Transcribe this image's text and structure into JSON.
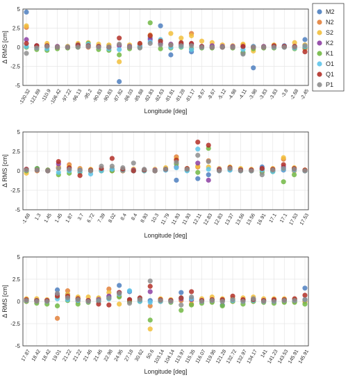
{
  "chart_data": [
    {
      "type": "scatter",
      "xlabel": "Longitude [deg]",
      "ylabel": "Δ RMS [cm]",
      "ylim": [
        -5,
        5
      ],
      "yticks": [
        -5,
        -2.5,
        0,
        2.5,
        5
      ],
      "grid": true,
      "categories": [
        "-130.32",
        "-121.89",
        "-110.9",
        "-106.42",
        "-97.22",
        "-96.13",
        "-95.2",
        "-90.83",
        "-90.83",
        "-87.82",
        "-86.03",
        "-85.88",
        "-82.83",
        "-82.63",
        "-81.81",
        "-81.28",
        "-81.17",
        "-8.67",
        "-8.67",
        "-5.12",
        "-4.98",
        "-4.11",
        "-3.98",
        "-3.83",
        "-3.83",
        "-3.8",
        "-2.68",
        "-2.45"
      ],
      "series": [
        {
          "name": "M2",
          "values": [
            4.6,
            0.2,
            0.2,
            0.0,
            0.1,
            0.1,
            0.2,
            0.1,
            0.2,
            -4.5,
            0.2,
            0.3,
            1.2,
            2.8,
            -1.0,
            0.5,
            -0.6,
            0.1,
            0.1,
            0.1,
            0.1,
            -0.8,
            -2.7,
            0.0,
            0.1,
            0.2,
            0.0,
            1.0
          ]
        },
        {
          "name": "N2",
          "values": [
            2.6,
            0.0,
            0.1,
            0.0,
            0.0,
            0.2,
            0.0,
            0.0,
            0.0,
            0.3,
            0.0,
            0.0,
            1.6,
            0.5,
            0.3,
            0.4,
            1.8,
            0.0,
            0.0,
            0.0,
            0.1,
            0.3,
            0.1,
            0.0,
            0.0,
            0.0,
            0.1,
            -0.2
          ]
        },
        {
          "name": "S2",
          "values": [
            2.8,
            0.2,
            0.5,
            0.1,
            0.1,
            0.5,
            0.6,
            0.4,
            0.3,
            -1.9,
            0.3,
            0.4,
            1.5,
            0.9,
            1.8,
            1.2,
            1.5,
            0.8,
            0.6,
            0.3,
            0.2,
            0.4,
            -0.5,
            0.1,
            0.3,
            0.1,
            0.6,
            0.3
          ]
        },
        {
          "name": "K2",
          "values": [
            1.0,
            0.2,
            0.1,
            0.1,
            0.0,
            0.2,
            0.1,
            0.1,
            0.0,
            0.2,
            0.1,
            0.1,
            1.0,
            0.5,
            0.4,
            0.3,
            0.4,
            0.1,
            0.2,
            0.1,
            0.1,
            0.1,
            0.1,
            0.1,
            0.1,
            0.1,
            0.1,
            0.0
          ]
        },
        {
          "name": "K1",
          "values": [
            0.0,
            -0.3,
            -0.4,
            -0.2,
            -0.1,
            0.0,
            0.5,
            -0.3,
            -0.4,
            -1.0,
            -0.2,
            0.0,
            3.2,
            -0.2,
            -0.1,
            0.0,
            -0.2,
            -0.1,
            -0.1,
            0.0,
            -0.1,
            -0.7,
            -0.2,
            -0.1,
            -0.1,
            0.0,
            -0.2,
            0.0
          ]
        },
        {
          "name": "O1",
          "values": [
            0.1,
            -0.1,
            -0.2,
            0.0,
            0.0,
            0.3,
            0.4,
            0.0,
            -0.2,
            -0.3,
            0.0,
            0.1,
            0.7,
            1.0,
            0.0,
            0.1,
            -0.3,
            0.0,
            0.0,
            0.0,
            0.0,
            -0.3,
            0.1,
            0.0,
            0.0,
            0.0,
            -0.1,
            0.1
          ]
        },
        {
          "name": "Q1",
          "values": [
            0.5,
            0.2,
            0.2,
            0.0,
            0.0,
            0.3,
            0.2,
            0.1,
            0.0,
            1.2,
            0.0,
            0.5,
            1.5,
            0.8,
            0.3,
            0.6,
            0.5,
            0.1,
            0.0,
            0.0,
            0.0,
            0.1,
            0.0,
            0.0,
            0.2,
            0.1,
            0.1,
            -0.6
          ]
        },
        {
          "name": "P1",
          "values": [
            -0.8,
            -0.1,
            0.1,
            0.0,
            0.0,
            0.0,
            0.1,
            0.0,
            0.0,
            0.4,
            0.0,
            -0.1,
            0.5,
            0.3,
            0.3,
            0.2,
            0.2,
            0.0,
            0.0,
            0.0,
            0.0,
            -0.9,
            0.0,
            0.0,
            0.0,
            0.0,
            0.0,
            0.2
          ]
        }
      ]
    },
    {
      "type": "scatter",
      "xlabel": "Longitude [deg]",
      "ylabel": "Δ RMS [cm]",
      "ylim": [
        -5,
        5
      ],
      "yticks": [
        -5,
        -2.5,
        0,
        2.5,
        5
      ],
      "grid": true,
      "categories": [
        "-1.68",
        "1.3",
        "1.45",
        "1.45",
        "1.87",
        "3.7",
        "6.72",
        "7.39",
        "8.02",
        "8.4",
        "8.4",
        "8.93",
        "10.3",
        "11.79",
        "11.93",
        "11.93",
        "12.11",
        "12.83",
        "12.83",
        "13.37",
        "13.56",
        "13.56",
        "16.91",
        "17.1",
        "17.1",
        "17.53",
        "17.53"
      ],
      "series": [
        {
          "name": "M2",
          "values": [
            0.0,
            0.3,
            0.0,
            0.4,
            0.1,
            0.1,
            0.0,
            0.1,
            0.1,
            0.0,
            0.0,
            0.1,
            0.0,
            0.1,
            -1.2,
            0.1,
            -1.0,
            -0.5,
            0.1,
            0.1,
            0.2,
            0.0,
            0.5,
            0.0,
            0.1,
            0.2,
            0.0
          ]
        },
        {
          "name": "N2",
          "values": [
            0.0,
            0.0,
            0.0,
            0.5,
            0.8,
            0.3,
            0.0,
            0.0,
            0.0,
            0.0,
            0.2,
            0.0,
            0.0,
            0.2,
            1.8,
            0.1,
            0.5,
            1.3,
            0.1,
            0.3,
            0.1,
            0.0,
            0.0,
            0.0,
            1.5,
            0.0,
            0.1
          ]
        },
        {
          "name": "S2",
          "values": [
            -0.3,
            0.1,
            0.1,
            0.4,
            0.5,
            0.2,
            0.2,
            0.2,
            0.3,
            0.1,
            0.2,
            0.1,
            0.2,
            0.4,
            1.5,
            0.3,
            0.6,
            0.5,
            0.3,
            0.5,
            0.3,
            0.2,
            0.2,
            0.3,
            1.7,
            0.4,
            0.1
          ]
        },
        {
          "name": "K2",
          "values": [
            0.2,
            0.1,
            0.1,
            0.9,
            0.3,
            0.1,
            0.0,
            0.1,
            0.2,
            0.1,
            0.1,
            0.1,
            0.1,
            0.2,
            0.5,
            0.1,
            1.0,
            -1.2,
            0.2,
            0.2,
            0.1,
            0.1,
            0.2,
            0.1,
            0.5,
            0.2,
            0.0
          ]
        },
        {
          "name": "K1",
          "values": [
            0.0,
            0.3,
            0.1,
            -0.5,
            -0.3,
            -0.2,
            0.0,
            0.0,
            0.0,
            0.1,
            0.0,
            0.0,
            0.0,
            0.2,
            0.9,
            0.1,
            -0.2,
            2.9,
            0.1,
            0.2,
            0.0,
            0.0,
            -0.2,
            -0.1,
            -1.4,
            -0.5,
            0.0
          ]
        },
        {
          "name": "O1",
          "values": [
            0.1,
            0.1,
            0.0,
            -0.2,
            0.0,
            -0.1,
            -0.4,
            0.0,
            0.2,
            0.1,
            0.0,
            0.0,
            0.0,
            0.1,
            0.4,
            0.0,
            2.8,
            0.2,
            0.0,
            0.1,
            0.0,
            0.0,
            0.1,
            -0.1,
            0.2,
            0.1,
            0.0
          ]
        },
        {
          "name": "Q1",
          "values": [
            0.2,
            0.1,
            0.0,
            1.2,
            0.4,
            -0.6,
            0.1,
            0.3,
            1.6,
            0.2,
            0.0,
            0.1,
            0.0,
            0.2,
            1.4,
            0.3,
            3.7,
            3.3,
            0.1,
            0.4,
            0.1,
            0.1,
            0.3,
            0.2,
            0.8,
            0.3,
            0.1
          ]
        },
        {
          "name": "P1",
          "values": [
            0.1,
            0.1,
            0.0,
            0.3,
            0.2,
            0.1,
            0.0,
            0.6,
            0.6,
            0.4,
            1.0,
            0.2,
            0.0,
            0.2,
            1.1,
            0.2,
            2.0,
            1.2,
            0.0,
            0.3,
            0.0,
            0.0,
            -0.5,
            0.1,
            0.3,
            0.2,
            0.0
          ]
        }
      ]
    },
    {
      "type": "scatter",
      "xlabel": "Longitude [deg]",
      "ylabel": "Δ RMS [cm]",
      "ylim": [
        -5,
        5
      ],
      "yticks": [
        -5,
        -2.5,
        0,
        2.5,
        5
      ],
      "grid": true,
      "categories": [
        "17.87",
        "18.42",
        "18.42",
        "19.01",
        "21.22",
        "21.22",
        "21.46",
        "21.46",
        "22.98",
        "24.95",
        "27.18",
        "30.62",
        "50.6",
        "103.14",
        "104.14",
        "113.97",
        "115.35",
        "116.07",
        "119.95",
        "121.28",
        "132.72",
        "132.97",
        "134.17",
        "141",
        "141.23",
        "143.53",
        "145.91",
        "145.91"
      ],
      "series": [
        {
          "name": "M2",
          "values": [
            0.1,
            0.1,
            0.0,
            1.3,
            0.8,
            0.3,
            0.1,
            0.3,
            0.5,
            1.8,
            1.1,
            0.3,
            0.1,
            0.1,
            0.0,
            1.0,
            0.3,
            0.1,
            0.2,
            -0.4,
            0.3,
            0.2,
            0.3,
            0.1,
            0.1,
            0.2,
            0.2,
            1.5
          ]
        },
        {
          "name": "N2",
          "values": [
            0.0,
            0.0,
            0.0,
            -1.9,
            1.2,
            0.0,
            0.0,
            0.0,
            1.4,
            0.6,
            0.0,
            0.0,
            -0.5,
            0.0,
            0.0,
            0.1,
            -0.3,
            0.0,
            0.0,
            0.0,
            0.0,
            0.0,
            0.0,
            0.0,
            0.0,
            0.0,
            0.0,
            0.0
          ]
        },
        {
          "name": "S2",
          "values": [
            0.3,
            0.3,
            0.2,
            0.5,
            0.8,
            0.5,
            0.5,
            0.4,
            1.0,
            -0.3,
            0.2,
            0.2,
            -3.1,
            0.3,
            0.2,
            0.4,
            0.1,
            0.3,
            0.5,
            0.3,
            0.3,
            0.4,
            0.5,
            0.3,
            0.3,
            0.3,
            0.2,
            0.1
          ]
        },
        {
          "name": "K2",
          "values": [
            0.1,
            0.1,
            0.1,
            0.8,
            0.4,
            0.1,
            0.1,
            0.2,
            0.6,
            1.0,
            0.2,
            0.1,
            1.1,
            0.1,
            0.1,
            0.3,
            0.2,
            0.1,
            0.1,
            0.1,
            0.1,
            0.1,
            0.1,
            0.1,
            0.1,
            0.1,
            0.1,
            0.2
          ]
        },
        {
          "name": "K1",
          "values": [
            0.0,
            -0.2,
            -0.3,
            -0.5,
            0.1,
            -0.3,
            -0.1,
            0.0,
            0.3,
            0.5,
            0.0,
            0.0,
            -2.1,
            0.0,
            -0.1,
            -1.0,
            -0.4,
            -0.2,
            -0.1,
            -0.5,
            0.0,
            -0.3,
            0.0,
            -0.1,
            -0.2,
            -0.1,
            -0.1,
            -0.3
          ]
        },
        {
          "name": "O1",
          "values": [
            0.1,
            0.1,
            0.0,
            0.3,
            0.2,
            0.1,
            0.0,
            0.0,
            0.3,
            0.8,
            1.2,
            0.0,
            -0.1,
            0.0,
            0.0,
            0.4,
            0.3,
            0.0,
            0.1,
            0.1,
            0.1,
            0.0,
            0.1,
            0.0,
            0.0,
            0.1,
            0.1,
            0.2
          ]
        },
        {
          "name": "Q1",
          "values": [
            0.2,
            0.1,
            0.1,
            0.6,
            0.6,
            0.3,
            0.1,
            -0.3,
            -0.4,
            1.0,
            0.2,
            0.4,
            1.7,
            0.2,
            0.1,
            0.4,
            1.1,
            0.1,
            0.2,
            0.2,
            0.6,
            0.2,
            0.2,
            0.1,
            0.2,
            0.2,
            0.3,
            0.7
          ]
        },
        {
          "name": "P1",
          "values": [
            0.1,
            0.0,
            0.0,
            0.9,
            0.4,
            0.2,
            0.0,
            0.1,
            0.4,
            0.9,
            -0.2,
            0.2,
            2.3,
            0.1,
            0.0,
            -0.4,
            0.5,
            0.0,
            0.1,
            0.0,
            0.2,
            0.0,
            0.3,
            0.0,
            0.0,
            0.1,
            0.1,
            0.2
          ]
        }
      ]
    }
  ],
  "legend": {
    "placement": "top-right",
    "items": [
      {
        "name": "M2",
        "color": "#4d7fc0"
      },
      {
        "name": "N2",
        "color": "#e3813b"
      },
      {
        "name": "S2",
        "color": "#f2bf3c"
      },
      {
        "name": "K2",
        "color": "#8d3fa3"
      },
      {
        "name": "K1",
        "color": "#72b944"
      },
      {
        "name": "O1",
        "color": "#5ec4ea"
      },
      {
        "name": "Q1",
        "color": "#b33028"
      },
      {
        "name": "P1",
        "color": "#8e8e8e"
      }
    ]
  }
}
